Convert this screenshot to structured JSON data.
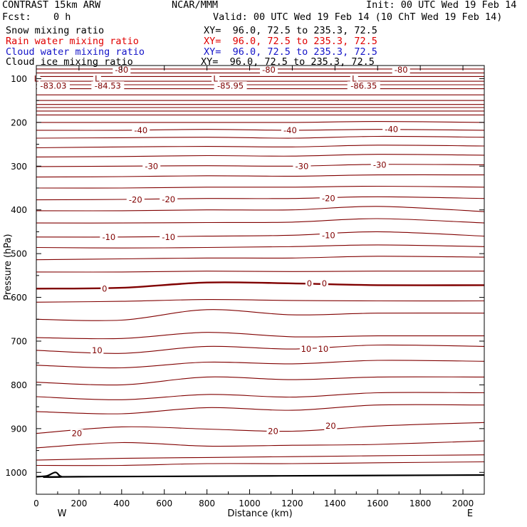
{
  "header": {
    "model": "CONTRAST 15km ARW",
    "org": "NCAR/MMM",
    "init": "Init: 00 UTC Wed 19 Feb 14",
    "fcst_label": "Fcst:",
    "fcst_value": "0 h",
    "valid": "Valid: 00 UTC Wed 19 Feb 14 (10 ChT Wed 19 Feb 14)",
    "fields": [
      {
        "name": "Snow mixing ratio",
        "xy": "XY=  96.0, 72.5 to 235.3, 72.5",
        "color": "#000000"
      },
      {
        "name": "Rain water mixing ratio",
        "xy": "XY=  96.0, 72.5 to 235.3, 72.5",
        "color": "#e00000"
      },
      {
        "name": "Cloud water mixing ratio",
        "xy": "XY=  96.0, 72.5 to 235.3, 72.5",
        "color": "#1414c8"
      },
      {
        "name": "Cloud ice mixing ratio",
        "xy": "XY=  96.0, 72.5 to 235.3, 72.5",
        "color": "#000000"
      }
    ]
  },
  "chart_data": {
    "type": "line",
    "title": "CONTRAST 15km ARW",
    "xlabel": "Distance (km)",
    "ylabel": "Pressure (hPa)",
    "xlim": [
      0,
      2100
    ],
    "ylim": [
      1050,
      70
    ],
    "x_ticks": [
      0,
      200,
      400,
      600,
      800,
      1000,
      1200,
      1400,
      1600,
      1800,
      2000
    ],
    "y_ticks": [
      100,
      200,
      300,
      400,
      500,
      600,
      700,
      800,
      900,
      1000
    ],
    "x_end_labels": {
      "left": "W",
      "right": "E"
    },
    "contour_color": "#800000",
    "contour_lines": [
      {
        "x": [
          0,
          400,
          800,
          1200,
          1600,
          2100
        ],
        "p": [
          78,
          78,
          78,
          78,
          78,
          78
        ]
      },
      {
        "x": [
          0,
          400,
          800,
          1200,
          1600,
          2100
        ],
        "p": [
          87,
          87,
          87,
          87,
          87,
          87
        ]
      },
      {
        "x": [
          0,
          400,
          800,
          1200,
          1600,
          2100
        ],
        "p": [
          95,
          95,
          95,
          95,
          95,
          95
        ]
      },
      {
        "x": [
          0,
          400,
          800,
          1200,
          1600,
          2100
        ],
        "p": [
          106,
          106,
          106,
          106,
          106,
          106
        ]
      },
      {
        "x": [
          0,
          400,
          800,
          1200,
          1600,
          2100
        ],
        "p": [
          114,
          114,
          114,
          114,
          114,
          114
        ]
      },
      {
        "x": [
          0,
          400,
          800,
          1200,
          1600,
          2100
        ],
        "p": [
          123,
          123,
          123,
          123,
          123,
          123
        ]
      },
      {
        "x": [
          0,
          400,
          800,
          1200,
          1600,
          2100
        ],
        "p": [
          137,
          137,
          137,
          137,
          137,
          137
        ]
      },
      {
        "x": [
          0,
          400,
          800,
          1200,
          1600,
          2100
        ],
        "p": [
          150,
          150,
          150,
          150,
          150,
          150
        ]
      },
      {
        "x": [
          0,
          400,
          800,
          1200,
          1600,
          2100
        ],
        "p": [
          159,
          159,
          159,
          159,
          159,
          159
        ]
      },
      {
        "x": [
          0,
          400,
          800,
          1200,
          1600,
          2100
        ],
        "p": [
          166,
          166,
          166,
          166,
          166,
          166
        ]
      },
      {
        "x": [
          0,
          400,
          800,
          1200,
          1600,
          2100
        ],
        "p": [
          174,
          174,
          174,
          174,
          174,
          174
        ]
      },
      {
        "x": [
          0,
          400,
          800,
          1200,
          1600,
          2100
        ],
        "p": [
          183,
          183,
          183,
          183,
          183,
          183
        ]
      },
      {
        "x": [
          0,
          400,
          800,
          1200,
          1600,
          2100
        ],
        "p": [
          200,
          200,
          200,
          200,
          198,
          200
        ]
      },
      {
        "x": [
          0,
          400,
          800,
          1200,
          1600,
          2100
        ],
        "p": [
          218,
          218,
          216,
          218,
          216,
          218
        ]
      },
      {
        "x": [
          0,
          400,
          800,
          1200,
          1600,
          2100
        ],
        "p": [
          236,
          235,
          234,
          236,
          232,
          234
        ]
      },
      {
        "x": [
          0,
          400,
          800,
          1200,
          1600,
          2100
        ],
        "p": [
          258,
          256,
          255,
          256,
          252,
          254
        ]
      },
      {
        "x": [
          0,
          400,
          800,
          1200,
          1600,
          2100
        ],
        "p": [
          279,
          278,
          276,
          277,
          273,
          275
        ]
      },
      {
        "x": [
          0,
          400,
          800,
          1200,
          1600,
          2100
        ],
        "p": [
          301,
          300,
          299,
          300,
          296,
          297
        ]
      },
      {
        "x": [
          0,
          400,
          800,
          1200,
          1600,
          2100
        ],
        "p": [
          325,
          324,
          322,
          323,
          320,
          320
        ]
      },
      {
        "x": [
          0,
          400,
          800,
          1200,
          1600,
          2100
        ],
        "p": [
          350,
          350,
          348,
          348,
          346,
          348
        ]
      },
      {
        "x": [
          0,
          400,
          800,
          1200,
          1600,
          2100
        ],
        "p": [
          377,
          376,
          374,
          374,
          370,
          374
        ]
      },
      {
        "x": [
          0,
          400,
          800,
          1200,
          1600,
          2100
        ],
        "p": [
          402,
          402,
          400,
          400,
          392,
          404
        ]
      },
      {
        "x": [
          0,
          400,
          800,
          1200,
          1600,
          2100
        ],
        "p": [
          430,
          430,
          429,
          428,
          420,
          430
        ]
      },
      {
        "x": [
          0,
          400,
          800,
          1200,
          1600,
          2100
        ],
        "p": [
          462,
          462,
          460,
          458,
          450,
          460
        ]
      },
      {
        "x": [
          0,
          400,
          800,
          1200,
          1600,
          2100
        ],
        "p": [
          486,
          487,
          486,
          484,
          480,
          484
        ]
      },
      {
        "x": [
          0,
          400,
          800,
          1200,
          1600,
          2100
        ],
        "p": [
          514,
          512,
          510,
          510,
          506,
          508
        ]
      },
      {
        "x": [
          0,
          400,
          800,
          1200,
          1600,
          2100
        ],
        "p": [
          542,
          542,
          540,
          541,
          540,
          540
        ]
      },
      {
        "x": [
          0,
          400,
          800,
          1200,
          1600,
          2100
        ],
        "p": [
          580,
          578,
          566,
          568,
          572,
          572
        ],
        "bold": true
      },
      {
        "x": [
          0,
          400,
          800,
          1200,
          1600,
          2100
        ],
        "p": [
          611,
          609,
          605,
          607,
          608,
          608
        ]
      },
      {
        "x": [
          0,
          400,
          800,
          1200,
          1600,
          2100
        ],
        "p": [
          650,
          652,
          628,
          640,
          636,
          636
        ]
      },
      {
        "x": [
          0,
          400,
          800,
          1200,
          1600,
          2100
        ],
        "p": [
          692,
          694,
          680,
          690,
          688,
          688
        ]
      },
      {
        "x": [
          0,
          400,
          800,
          1200,
          1600,
          2100
        ],
        "p": [
          721,
          728,
          712,
          718,
          709,
          712
        ]
      },
      {
        "x": [
          0,
          400,
          800,
          1200,
          1600,
          2100
        ],
        "p": [
          755,
          761,
          748,
          752,
          744,
          746
        ]
      },
      {
        "x": [
          0,
          400,
          800,
          1200,
          1600,
          2100
        ],
        "p": [
          794,
          800,
          782,
          788,
          782,
          782
        ]
      },
      {
        "x": [
          0,
          400,
          800,
          1200,
          1600,
          2100
        ],
        "p": [
          827,
          834,
          822,
          828,
          818,
          818
        ]
      },
      {
        "x": [
          0,
          400,
          800,
          1200,
          1600,
          2100
        ],
        "p": [
          861,
          866,
          852,
          858,
          846,
          846
        ]
      },
      {
        "x": [
          0,
          400,
          800,
          1200,
          1600,
          2100
        ],
        "p": [
          911,
          896,
          901,
          906,
          894,
          886
        ]
      },
      {
        "x": [
          0,
          400,
          800,
          1200,
          1600,
          2100
        ],
        "p": [
          944,
          932,
          940,
          938,
          936,
          928
        ]
      },
      {
        "x": [
          0,
          400,
          800,
          1200,
          1600,
          2100
        ],
        "p": [
          972,
          968,
          966,
          964,
          962,
          960
        ]
      },
      {
        "x": [
          0,
          400,
          800,
          1200,
          1600,
          2100
        ],
        "p": [
          984,
          984,
          980,
          980,
          978,
          976
        ]
      }
    ],
    "ground": {
      "x": [
        0,
        50,
        90,
        120,
        200,
        2100
      ],
      "p": [
        1010,
        1008,
        1000,
        1010,
        1010,
        1006
      ]
    },
    "contour_labels": [
      {
        "text": "-80",
        "x": 400,
        "p": 80
      },
      {
        "text": "-80",
        "x": 1090,
        "p": 80
      },
      {
        "text": "-80",
        "x": 1710,
        "p": 80
      },
      {
        "text": "-83.03",
        "x": 80,
        "p": 116
      },
      {
        "text": "-84.53",
        "x": 335,
        "p": 116
      },
      {
        "text": "-85.95",
        "x": 910,
        "p": 116
      },
      {
        "text": "-86.35",
        "x": 1535,
        "p": 116
      },
      {
        "text": "L",
        "x": 0,
        "p": 100
      },
      {
        "text": "L",
        "x": 285,
        "p": 100
      },
      {
        "text": "L",
        "x": 840,
        "p": 100
      },
      {
        "text": "L",
        "x": 1490,
        "p": 100
      },
      {
        "text": "-40",
        "x": 490,
        "p": 218
      },
      {
        "text": "-40",
        "x": 1190,
        "p": 218
      },
      {
        "text": "-40",
        "x": 1665,
        "p": 216
      },
      {
        "text": "-30",
        "x": 540,
        "p": 300
      },
      {
        "text": "-30",
        "x": 1245,
        "p": 300
      },
      {
        "text": "-30",
        "x": 1610,
        "p": 297
      },
      {
        "text": "-20",
        "x": 465,
        "p": 377
      },
      {
        "text": "-20",
        "x": 620,
        "p": 376
      },
      {
        "text": "-20",
        "x": 1370,
        "p": 374
      },
      {
        "text": "-10",
        "x": 340,
        "p": 462
      },
      {
        "text": "-10",
        "x": 620,
        "p": 462
      },
      {
        "text": "-10",
        "x": 1370,
        "p": 458
      },
      {
        "text": "0",
        "x": 320,
        "p": 580
      },
      {
        "text": "0",
        "x": 1280,
        "p": 568
      },
      {
        "text": "0",
        "x": 1350,
        "p": 568
      },
      {
        "text": "10",
        "x": 285,
        "p": 721
      },
      {
        "text": "10",
        "x": 1265,
        "p": 718
      },
      {
        "text": "10",
        "x": 1345,
        "p": 718
      },
      {
        "text": "20",
        "x": 190,
        "p": 911
      },
      {
        "text": "20",
        "x": 1110,
        "p": 906
      },
      {
        "text": "20",
        "x": 1380,
        "p": 894
      }
    ]
  }
}
